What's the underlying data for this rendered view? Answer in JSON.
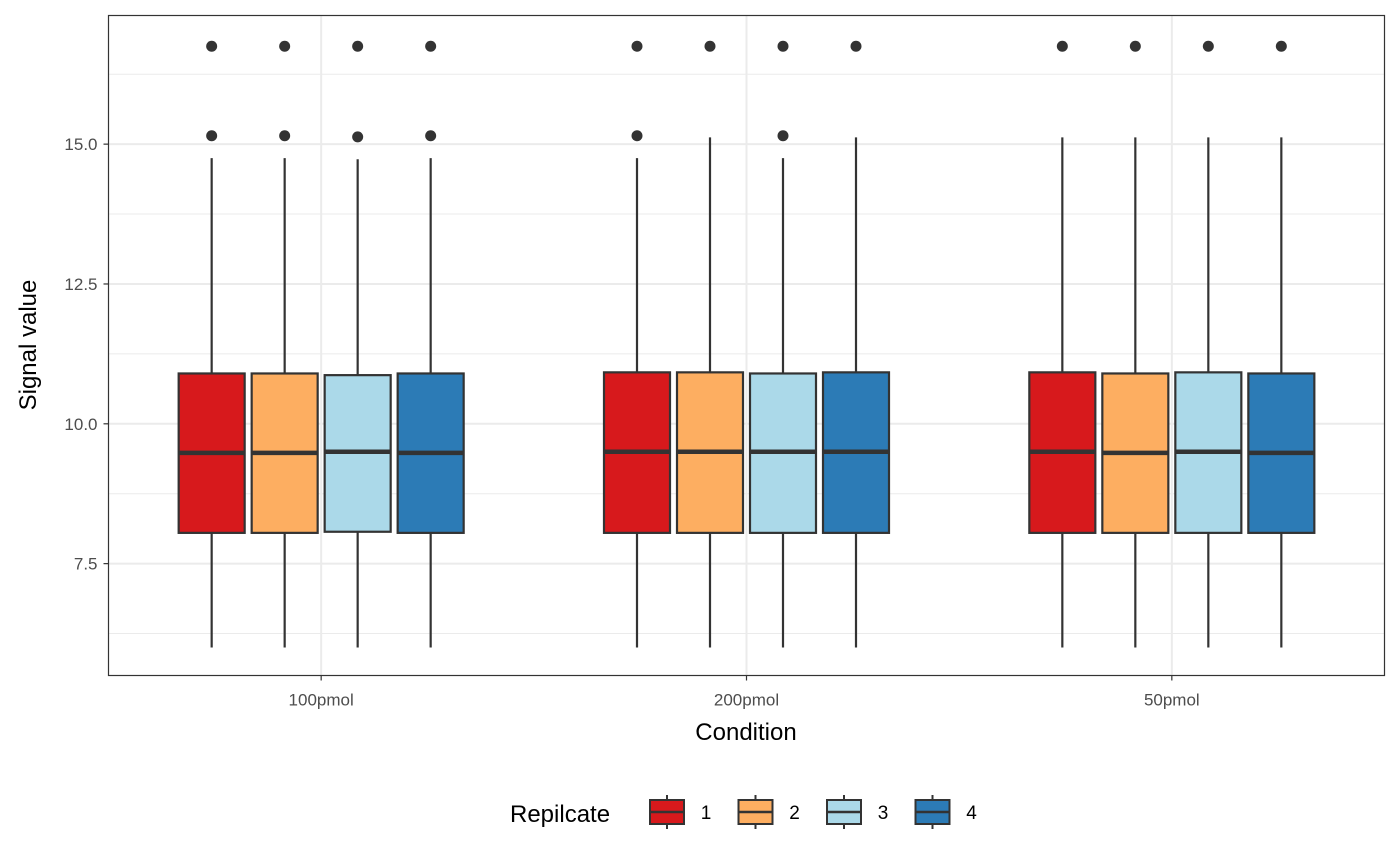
{
  "chart_data": {
    "type": "boxplot",
    "xlabel": "Condition",
    "ylabel": "Signal value",
    "categories": [
      "100pmol",
      "200pmol",
      "50pmol"
    ],
    "ylim": [
      5.5,
      17.3
    ],
    "yticks": [
      7.5,
      10.0,
      12.5,
      15.0
    ],
    "ytick_labels": [
      "7.5",
      "10.0",
      "12.5",
      "15.0"
    ],
    "grid": true,
    "legend": {
      "title": "Repilcate",
      "position": "bottom"
    },
    "series": [
      {
        "name": "1",
        "color": "#D7191C",
        "boxes": [
          {
            "whisker_low": 6.0,
            "q1": 8.05,
            "median": 9.48,
            "q3": 10.9,
            "whisker_high": 14.75,
            "outliers": [
              15.15,
              16.75
            ]
          },
          {
            "whisker_low": 6.0,
            "q1": 8.05,
            "median": 9.5,
            "q3": 10.92,
            "whisker_high": 14.75,
            "outliers": [
              15.15,
              16.75
            ]
          },
          {
            "whisker_low": 6.0,
            "q1": 8.05,
            "median": 9.5,
            "q3": 10.92,
            "whisker_high": 15.12,
            "outliers": [
              16.75
            ]
          }
        ]
      },
      {
        "name": "2",
        "color": "#FDAE61",
        "boxes": [
          {
            "whisker_low": 6.0,
            "q1": 8.05,
            "median": 9.48,
            "q3": 10.9,
            "whisker_high": 14.75,
            "outliers": [
              15.15,
              16.75
            ]
          },
          {
            "whisker_low": 6.0,
            "q1": 8.05,
            "median": 9.5,
            "q3": 10.92,
            "whisker_high": 15.12,
            "outliers": [
              16.75
            ]
          },
          {
            "whisker_low": 6.0,
            "q1": 8.05,
            "median": 9.48,
            "q3": 10.9,
            "whisker_high": 15.12,
            "outliers": [
              16.75
            ]
          }
        ]
      },
      {
        "name": "3",
        "color": "#ABD9E9",
        "boxes": [
          {
            "whisker_low": 6.0,
            "q1": 8.07,
            "median": 9.5,
            "q3": 10.87,
            "whisker_high": 14.73,
            "outliers": [
              15.13,
              16.75
            ]
          },
          {
            "whisker_low": 6.0,
            "q1": 8.05,
            "median": 9.5,
            "q3": 10.9,
            "whisker_high": 14.75,
            "outliers": [
              15.15,
              16.75
            ]
          },
          {
            "whisker_low": 6.0,
            "q1": 8.05,
            "median": 9.5,
            "q3": 10.92,
            "whisker_high": 15.12,
            "outliers": [
              16.75
            ]
          }
        ]
      },
      {
        "name": "4",
        "color": "#2C7BB6",
        "boxes": [
          {
            "whisker_low": 6.0,
            "q1": 8.05,
            "median": 9.48,
            "q3": 10.9,
            "whisker_high": 14.75,
            "outliers": [
              15.15,
              16.75
            ]
          },
          {
            "whisker_low": 6.0,
            "q1": 8.05,
            "median": 9.5,
            "q3": 10.92,
            "whisker_high": 15.12,
            "outliers": [
              16.75
            ]
          },
          {
            "whisker_low": 6.0,
            "q1": 8.05,
            "median": 9.48,
            "q3": 10.9,
            "whisker_high": 15.12,
            "outliers": [
              16.75
            ]
          }
        ]
      }
    ]
  }
}
